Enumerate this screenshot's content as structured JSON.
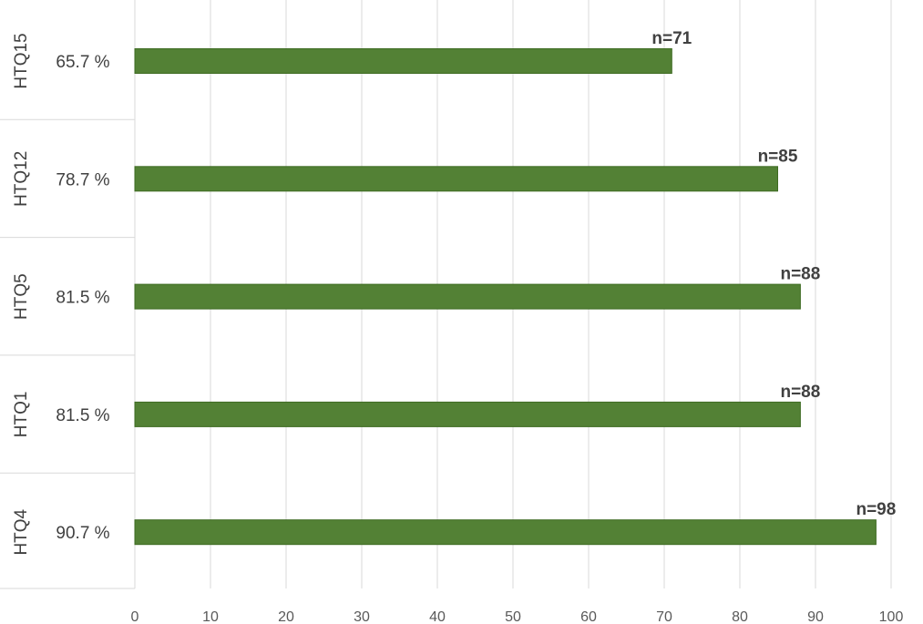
{
  "chart_data": {
    "type": "bar",
    "orientation": "horizontal",
    "categories": [
      "HTQ15",
      "HTQ12",
      "HTQ5",
      "HTQ1",
      "HTQ4"
    ],
    "values": [
      71,
      85,
      88,
      88,
      98
    ],
    "percent_labels": [
      "65.7 %",
      "78.7 %",
      "81.5 %",
      "81.5 %",
      "90.7 %"
    ],
    "data_labels": [
      "n=71",
      "n=85",
      "n=88",
      "n=88",
      "n=98"
    ],
    "xlim": [
      0,
      100
    ],
    "x_ticks": [
      "0",
      "10",
      "20",
      "30",
      "40",
      "50",
      "60",
      "70",
      "80",
      "90",
      "100"
    ],
    "grid": "vertical",
    "legend": "none",
    "title": "",
    "xlabel": "",
    "ylabel": "",
    "bar_color": "#538135"
  }
}
